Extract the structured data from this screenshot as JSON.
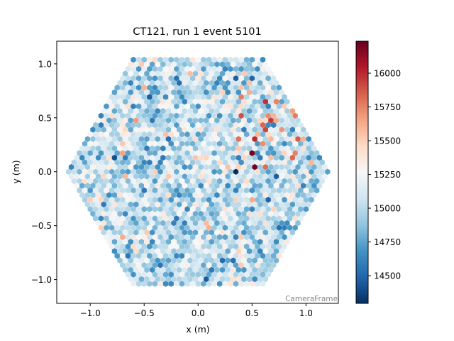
{
  "chart_data": {
    "type": "heatmap",
    "subtype": "hexagonal camera image",
    "title": "CT121, run 1 event 5101",
    "xlabel": "x  (m)",
    "ylabel": "y  (m)",
    "xlim": [
      -1.31,
      1.3
    ],
    "ylim": [
      -1.22,
      1.21
    ],
    "xticks": [
      -1.0,
      -0.5,
      0.0,
      0.5,
      1.0
    ],
    "xtick_labels": [
      "−1.0",
      "−0.5",
      "0.0",
      "0.5",
      "1.0"
    ],
    "yticks": [
      -1.0,
      -0.5,
      0.0,
      0.5,
      1.0
    ],
    "ytick_labels": [
      "−1.0",
      "−0.5",
      "0.0",
      "0.5",
      "1.0"
    ],
    "annotation": "CameraFrame",
    "grid": false,
    "colormap": "RdBu_r",
    "colorbar": {
      "range": [
        14295,
        16237
      ],
      "ticks": [
        14500,
        14750,
        15000,
        15250,
        15500,
        15750,
        16000
      ],
      "tick_labels": [
        "14500",
        "14750",
        "15000",
        "15250",
        "15500",
        "15750",
        "16000"
      ],
      "placement": "right"
    },
    "colormap_stops": [
      "#053061",
      "#2166ac",
      "#4393c3",
      "#92c5de",
      "#d1e5f0",
      "#f7f7f7",
      "#fddbc7",
      "#f4a582",
      "#d6604d",
      "#b2182b",
      "#67001f"
    ]
  }
}
